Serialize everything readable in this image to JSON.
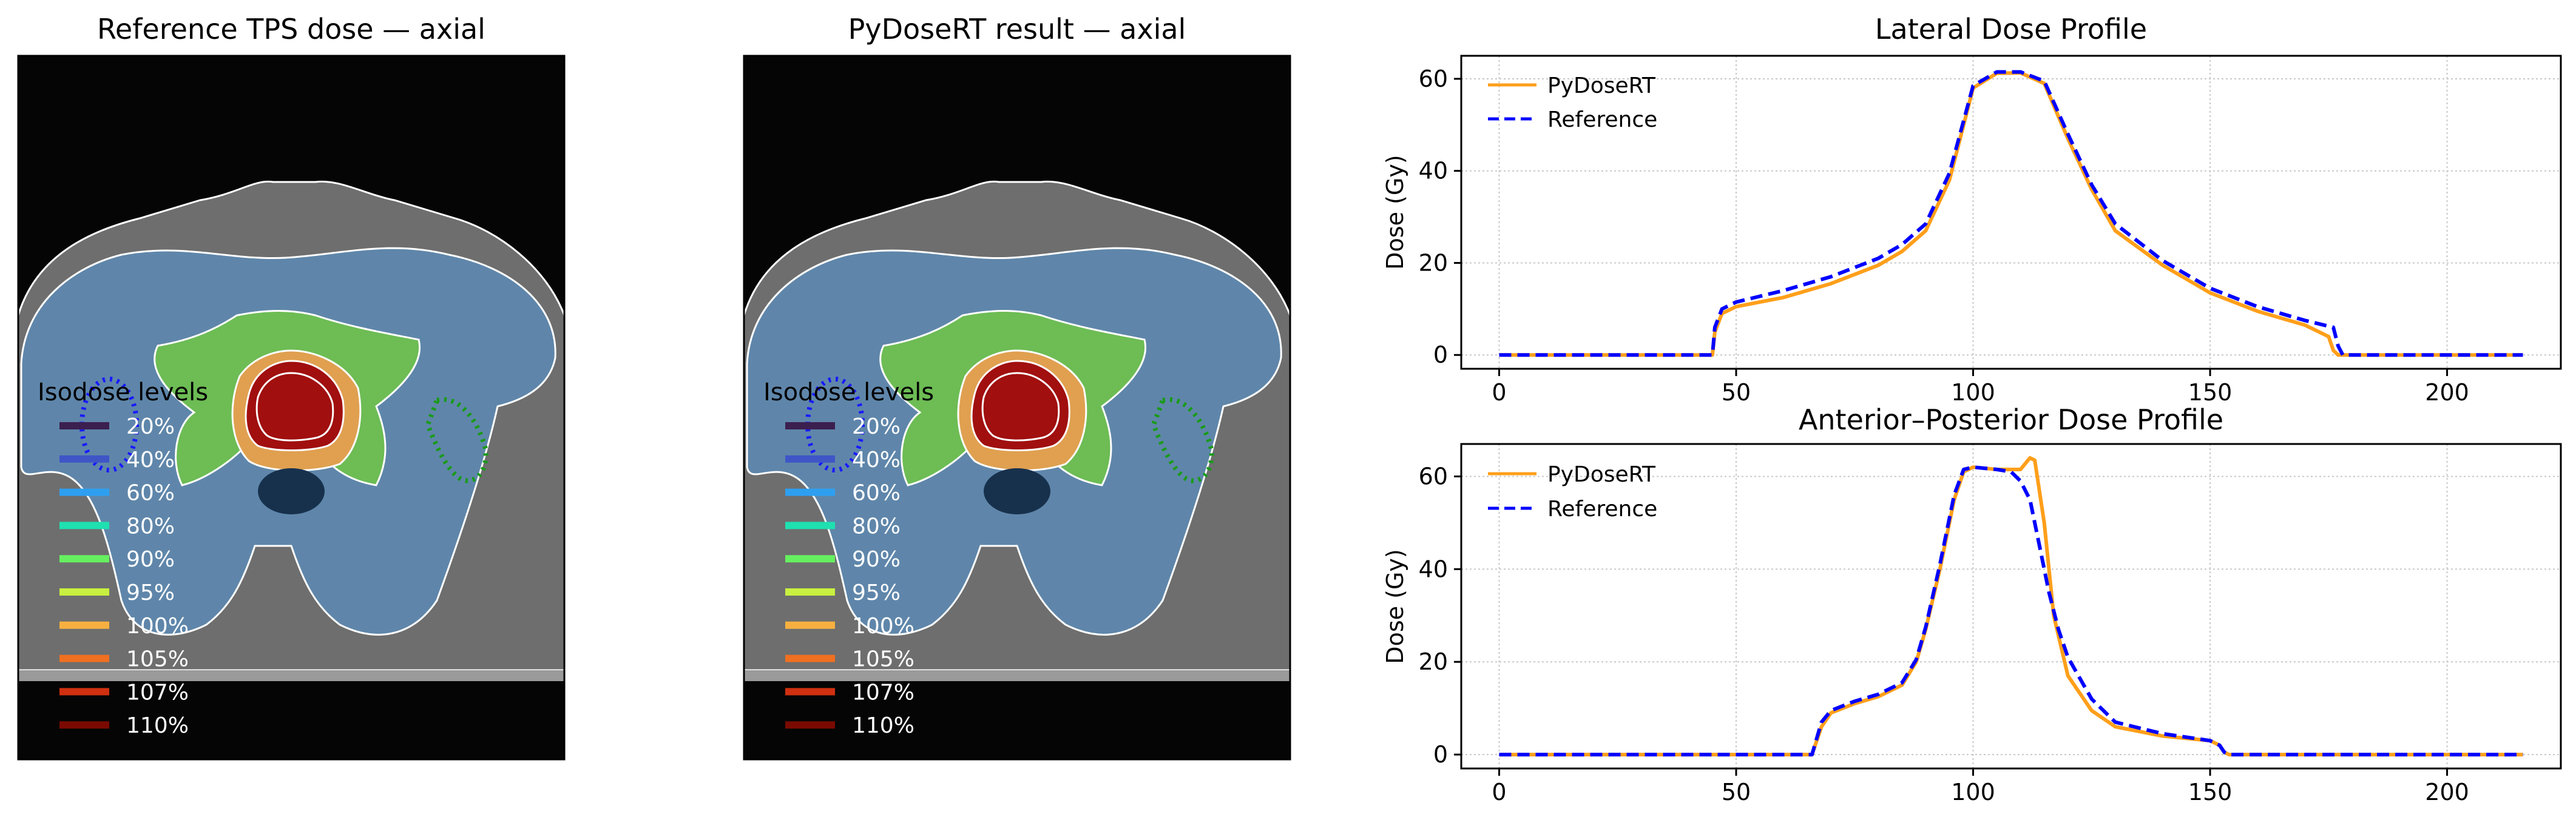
{
  "chart_data": [
    {
      "type": "image",
      "title": "Reference TPS dose — axial",
      "legend_title": "Isodose levels",
      "isodose_levels": [
        {
          "label": "20%",
          "color": "#3b1f4f"
        },
        {
          "label": "40%",
          "color": "#3f55c6"
        },
        {
          "label": "60%",
          "color": "#2e9ff0"
        },
        {
          "label": "80%",
          "color": "#1fe0b0"
        },
        {
          "label": "90%",
          "color": "#66f060"
        },
        {
          "label": "95%",
          "color": "#c8f040"
        },
        {
          "label": "100%",
          "color": "#f7b040"
        },
        {
          "label": "105%",
          "color": "#f07020"
        },
        {
          "label": "107%",
          "color": "#d03010"
        },
        {
          "label": "110%",
          "color": "#7a0a00"
        }
      ]
    },
    {
      "type": "image",
      "title": "PyDoseRT result — axial",
      "legend_title": "Isodose levels",
      "isodose_levels": [
        {
          "label": "20%",
          "color": "#3b1f4f"
        },
        {
          "label": "40%",
          "color": "#3f55c6"
        },
        {
          "label": "60%",
          "color": "#2e9ff0"
        },
        {
          "label": "80%",
          "color": "#1fe0b0"
        },
        {
          "label": "90%",
          "color": "#66f060"
        },
        {
          "label": "95%",
          "color": "#c8f040"
        },
        {
          "label": "100%",
          "color": "#f7b040"
        },
        {
          "label": "105%",
          "color": "#f07020"
        },
        {
          "label": "107%",
          "color": "#d03010"
        },
        {
          "label": "110%",
          "color": "#7a0a00"
        }
      ]
    },
    {
      "type": "line",
      "title": "Lateral Dose Profile",
      "xlabel": "",
      "ylabel": "Dose (Gy)",
      "xlim": [
        -8,
        224
      ],
      "ylim": [
        -3,
        65
      ],
      "xticks": [
        0,
        50,
        100,
        150,
        200
      ],
      "yticks": [
        0,
        20,
        40,
        60
      ],
      "grid": true,
      "legend_position": "top-left",
      "series": [
        {
          "name": "PyDoseRT",
          "color": "#ff9f1a",
          "style": "solid",
          "x": [
            0,
            45,
            45.5,
            47,
            50,
            60,
            70,
            80,
            85,
            90,
            95,
            100,
            105,
            110,
            115,
            120,
            125,
            130,
            140,
            150,
            160,
            170,
            175,
            176,
            177,
            180,
            216
          ],
          "y": [
            0,
            0,
            5,
            9,
            10.5,
            12.5,
            15.5,
            19.5,
            22.5,
            27,
            38,
            58,
            61.2,
            61.3,
            59,
            47,
            36,
            27,
            19.5,
            13.5,
            9.5,
            6.5,
            4,
            1,
            0,
            0,
            0
          ]
        },
        {
          "name": "Reference",
          "color": "#0000ff",
          "style": "dashed",
          "x": [
            0,
            45,
            45.5,
            47,
            50,
            60,
            70,
            80,
            85,
            90,
            95,
            100,
            105,
            110,
            115,
            120,
            125,
            130,
            140,
            150,
            160,
            170,
            176,
            177,
            178,
            180,
            216
          ],
          "y": [
            0,
            0,
            6,
            10,
            11.5,
            14,
            17,
            21,
            24,
            28.5,
            39.5,
            58.5,
            61.5,
            61.5,
            59.5,
            48,
            37,
            28.5,
            20.5,
            14.5,
            10.5,
            7.5,
            6,
            2,
            0,
            0,
            0
          ]
        }
      ]
    },
    {
      "type": "line",
      "title": "Anterior–Posterior Dose Profile",
      "xlabel": "",
      "ylabel": "Dose (Gy)",
      "xlim": [
        -8,
        224
      ],
      "ylim": [
        -3,
        67
      ],
      "xticks": [
        0,
        50,
        100,
        150,
        200
      ],
      "yticks": [
        0,
        20,
        40,
        60
      ],
      "grid": true,
      "legend_position": "top-left",
      "series": [
        {
          "name": "PyDoseRT",
          "color": "#ff9f1a",
          "style": "solid",
          "x": [
            0,
            66,
            67,
            68,
            70,
            75,
            80,
            85,
            88,
            90,
            93,
            96,
            98,
            100,
            105,
            110,
            112,
            113,
            115,
            117,
            120,
            125,
            130,
            140,
            150,
            152,
            153,
            154,
            216
          ],
          "y": [
            0,
            0,
            3,
            6,
            9,
            11,
            12.5,
            15,
            20,
            27,
            40,
            55,
            61,
            62,
            61.5,
            61.5,
            64,
            63.5,
            50,
            30,
            17,
            9.5,
            6,
            4,
            3,
            2,
            0.5,
            0,
            0
          ]
        },
        {
          "name": "Reference",
          "color": "#0000ff",
          "style": "dashed",
          "x": [
            0,
            66,
            67,
            68,
            70,
            75,
            80,
            85,
            88,
            90,
            93,
            96,
            98,
            100,
            105,
            108,
            110,
            112,
            114,
            116,
            118,
            120,
            125,
            130,
            140,
            150,
            152,
            153,
            154,
            216
          ],
          "y": [
            0,
            0,
            3.5,
            7,
            9.5,
            11.5,
            13,
            15.5,
            20.5,
            27.5,
            41,
            56,
            61.5,
            62,
            61.5,
            61,
            59,
            55,
            45,
            35,
            27,
            21,
            12,
            7,
            4.5,
            3,
            2,
            0.5,
            0,
            0
          ]
        }
      ]
    }
  ]
}
